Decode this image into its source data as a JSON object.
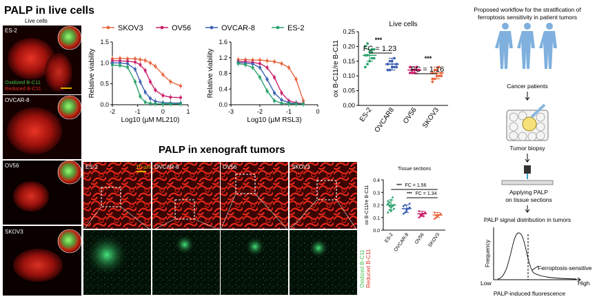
{
  "titles": {
    "live": "PALP in live cells",
    "xeno": "PALP in xenograft tumors"
  },
  "colors": {
    "skov3": "#e8663e",
    "ov56": "#cc1f6b",
    "ovcar8": "#3a5fb0",
    "es2": "#2aa36b",
    "green_text": "#3ec24a",
    "red_text": "#e03020",
    "scalebar": "#e0b000"
  },
  "cells_panel": {
    "header": "Live cells",
    "cell_labels": [
      "ES-2",
      "OVCAR-8",
      "OV56",
      "SKOV3"
    ],
    "legend_oxidized": "Oxidized B-C11",
    "legend_reduced": "Reduced B-C11"
  },
  "legend": [
    "SKOV3",
    "OV56",
    "OVCAR-8",
    "ES-2"
  ],
  "chart_data": [
    {
      "type": "line",
      "xlabel": "Log10 (µM ML210)",
      "ylabel": "Relative viability",
      "xlim": [
        -2,
        1
      ],
      "ylim": [
        0,
        1.5
      ],
      "xticks": [
        "-2",
        "-1",
        "0",
        "1"
      ],
      "yticks": [
        "0.0",
        "0.5",
        "1.0",
        "1.5"
      ],
      "x": [
        -2,
        -1.7,
        -1.4,
        -1.1,
        -0.9,
        -0.7,
        -0.5,
        -0.3,
        0,
        0.3,
        0.7
      ],
      "series": [
        {
          "name": "SKOV3",
          "values": [
            1.1,
            1.11,
            1.1,
            1.1,
            1.08,
            1.06,
            1.0,
            0.92,
            0.72,
            0.55,
            0.45
          ]
        },
        {
          "name": "OV56",
          "values": [
            1.05,
            1.05,
            1.04,
            1.02,
            0.96,
            0.82,
            0.55,
            0.35,
            0.22,
            0.18,
            0.17
          ]
        },
        {
          "name": "OVCAR-8",
          "values": [
            1.0,
            1.0,
            0.98,
            0.85,
            0.55,
            0.3,
            0.15,
            0.08,
            0.05,
            0.04,
            0.04
          ]
        },
        {
          "name": "ES-2",
          "values": [
            0.95,
            0.94,
            0.9,
            0.55,
            0.2,
            0.06,
            0.03,
            0.02,
            0.02,
            0.02,
            0.02
          ]
        }
      ]
    },
    {
      "type": "line",
      "xlabel": "Log10 (µM RSL3)",
      "ylabel": "Relative viability",
      "xlim": [
        -3,
        0
      ],
      "ylim": [
        0,
        1.6
      ],
      "xticks": [
        "-3",
        "-2",
        "-1",
        "0"
      ],
      "yticks": [
        "0.0",
        "0.4",
        "0.8",
        "1.2",
        "1.6"
      ],
      "x": [
        -2.75,
        -2.5,
        -2.25,
        -2.0,
        -1.75,
        -1.5,
        -1.25,
        -1.0,
        -0.75,
        -0.5
      ],
      "series": [
        {
          "name": "SKOV3",
          "values": [
            1.15,
            1.15,
            1.14,
            1.14,
            1.12,
            1.1,
            1.05,
            0.95,
            0.65,
            0.1
          ]
        },
        {
          "name": "OV56",
          "values": [
            1.1,
            1.1,
            1.08,
            1.05,
            0.95,
            0.7,
            0.3,
            0.1,
            0.05,
            0.03
          ]
        },
        {
          "name": "OVCAR-8",
          "values": [
            1.08,
            1.06,
            1.04,
            0.95,
            0.65,
            0.3,
            0.12,
            0.05,
            0.03,
            0.02
          ]
        },
        {
          "name": "ES-2",
          "values": [
            1.05,
            1.02,
            0.95,
            0.7,
            0.35,
            0.1,
            0.04,
            0.02,
            0.02,
            0.02
          ]
        }
      ]
    },
    {
      "type": "scatter",
      "title": "Live cells",
      "ylabel": "ox B-C11/re B-C11",
      "ylim": [
        0,
        0.25
      ],
      "yticks": [
        "0.00",
        "0.05",
        "0.10",
        "0.15",
        "0.20",
        "0.25"
      ],
      "categories": [
        "ES-2",
        "OVCAR8",
        "OV56",
        "SKOV3"
      ],
      "means": [
        0.17,
        0.14,
        0.12,
        0.11
      ],
      "sd": [
        0.02,
        0.02,
        0.01,
        0.02
      ],
      "annotations": [
        "***",
        "FC = 1.23",
        "***",
        "FC = 1.16"
      ],
      "points": [
        [
          0.13,
          0.14,
          0.15,
          0.16,
          0.16,
          0.17,
          0.17,
          0.18,
          0.18,
          0.19,
          0.2,
          0.21,
          0.15,
          0.19
        ],
        [
          0.12,
          0.12,
          0.13,
          0.13,
          0.14,
          0.14,
          0.15,
          0.15,
          0.16,
          0.13,
          0.14,
          0.12
        ],
        [
          0.11,
          0.11,
          0.12,
          0.12,
          0.12,
          0.13,
          0.12,
          0.11,
          0.13,
          0.12
        ],
        [
          0.08,
          0.09,
          0.1,
          0.1,
          0.11,
          0.11,
          0.12,
          0.12,
          0.13,
          0.1,
          0.09
        ]
      ]
    },
    {
      "type": "scatter",
      "title": "Tissue sections",
      "ylabel": "ox B-C11/re B-C11",
      "ylim": [
        0,
        0.4
      ],
      "yticks": [
        "0.0",
        "0.1",
        "0.2",
        "0.3",
        "0.4"
      ],
      "categories": [
        "ES-2",
        "OVCAR-8",
        "OV56",
        "SKOV3"
      ],
      "means": [
        0.2,
        0.17,
        0.13,
        0.12
      ],
      "sd": [
        0.04,
        0.03,
        0.02,
        0.02
      ],
      "annotations": [
        "***",
        "FC = 1.56",
        "***",
        "FC = 1.34"
      ],
      "points": [
        [
          0.14,
          0.16,
          0.18,
          0.19,
          0.2,
          0.21,
          0.22,
          0.24,
          0.26,
          0.17,
          0.23,
          0.19,
          0.15
        ],
        [
          0.13,
          0.14,
          0.16,
          0.17,
          0.18,
          0.19,
          0.2,
          0.15,
          0.17,
          0.21
        ],
        [
          0.1,
          0.11,
          0.12,
          0.13,
          0.14,
          0.15,
          0.12,
          0.13,
          0.11
        ],
        [
          0.09,
          0.1,
          0.11,
          0.12,
          0.13,
          0.14,
          0.12,
          0.11
        ]
      ]
    }
  ],
  "xeno_panel": {
    "tiles": [
      "ES-2",
      "OVCAR-8",
      "OV56",
      "SKOV3"
    ],
    "scale_label": "10 µm",
    "legend_oxidized": "Oxidized B-C11",
    "legend_reduced": "Reduced B-C11"
  },
  "workflow": {
    "title_line1": "Proposed workflow for the stratification of",
    "title_line2": "ferroptosis sensitivity in patient tumors",
    "patients": "Cancer patients",
    "biopsy": "Tumor biopsy",
    "applying_line1": "Applying PALP",
    "applying_line2": "on tissue sections",
    "distribution": "PALP signal distribution in tumors",
    "ylabel": "Frequency",
    "xlabel": "PALP-induced fluorescence",
    "low": "Low",
    "high": "High",
    "sensitive": "Ferroptosis-sensitive"
  }
}
